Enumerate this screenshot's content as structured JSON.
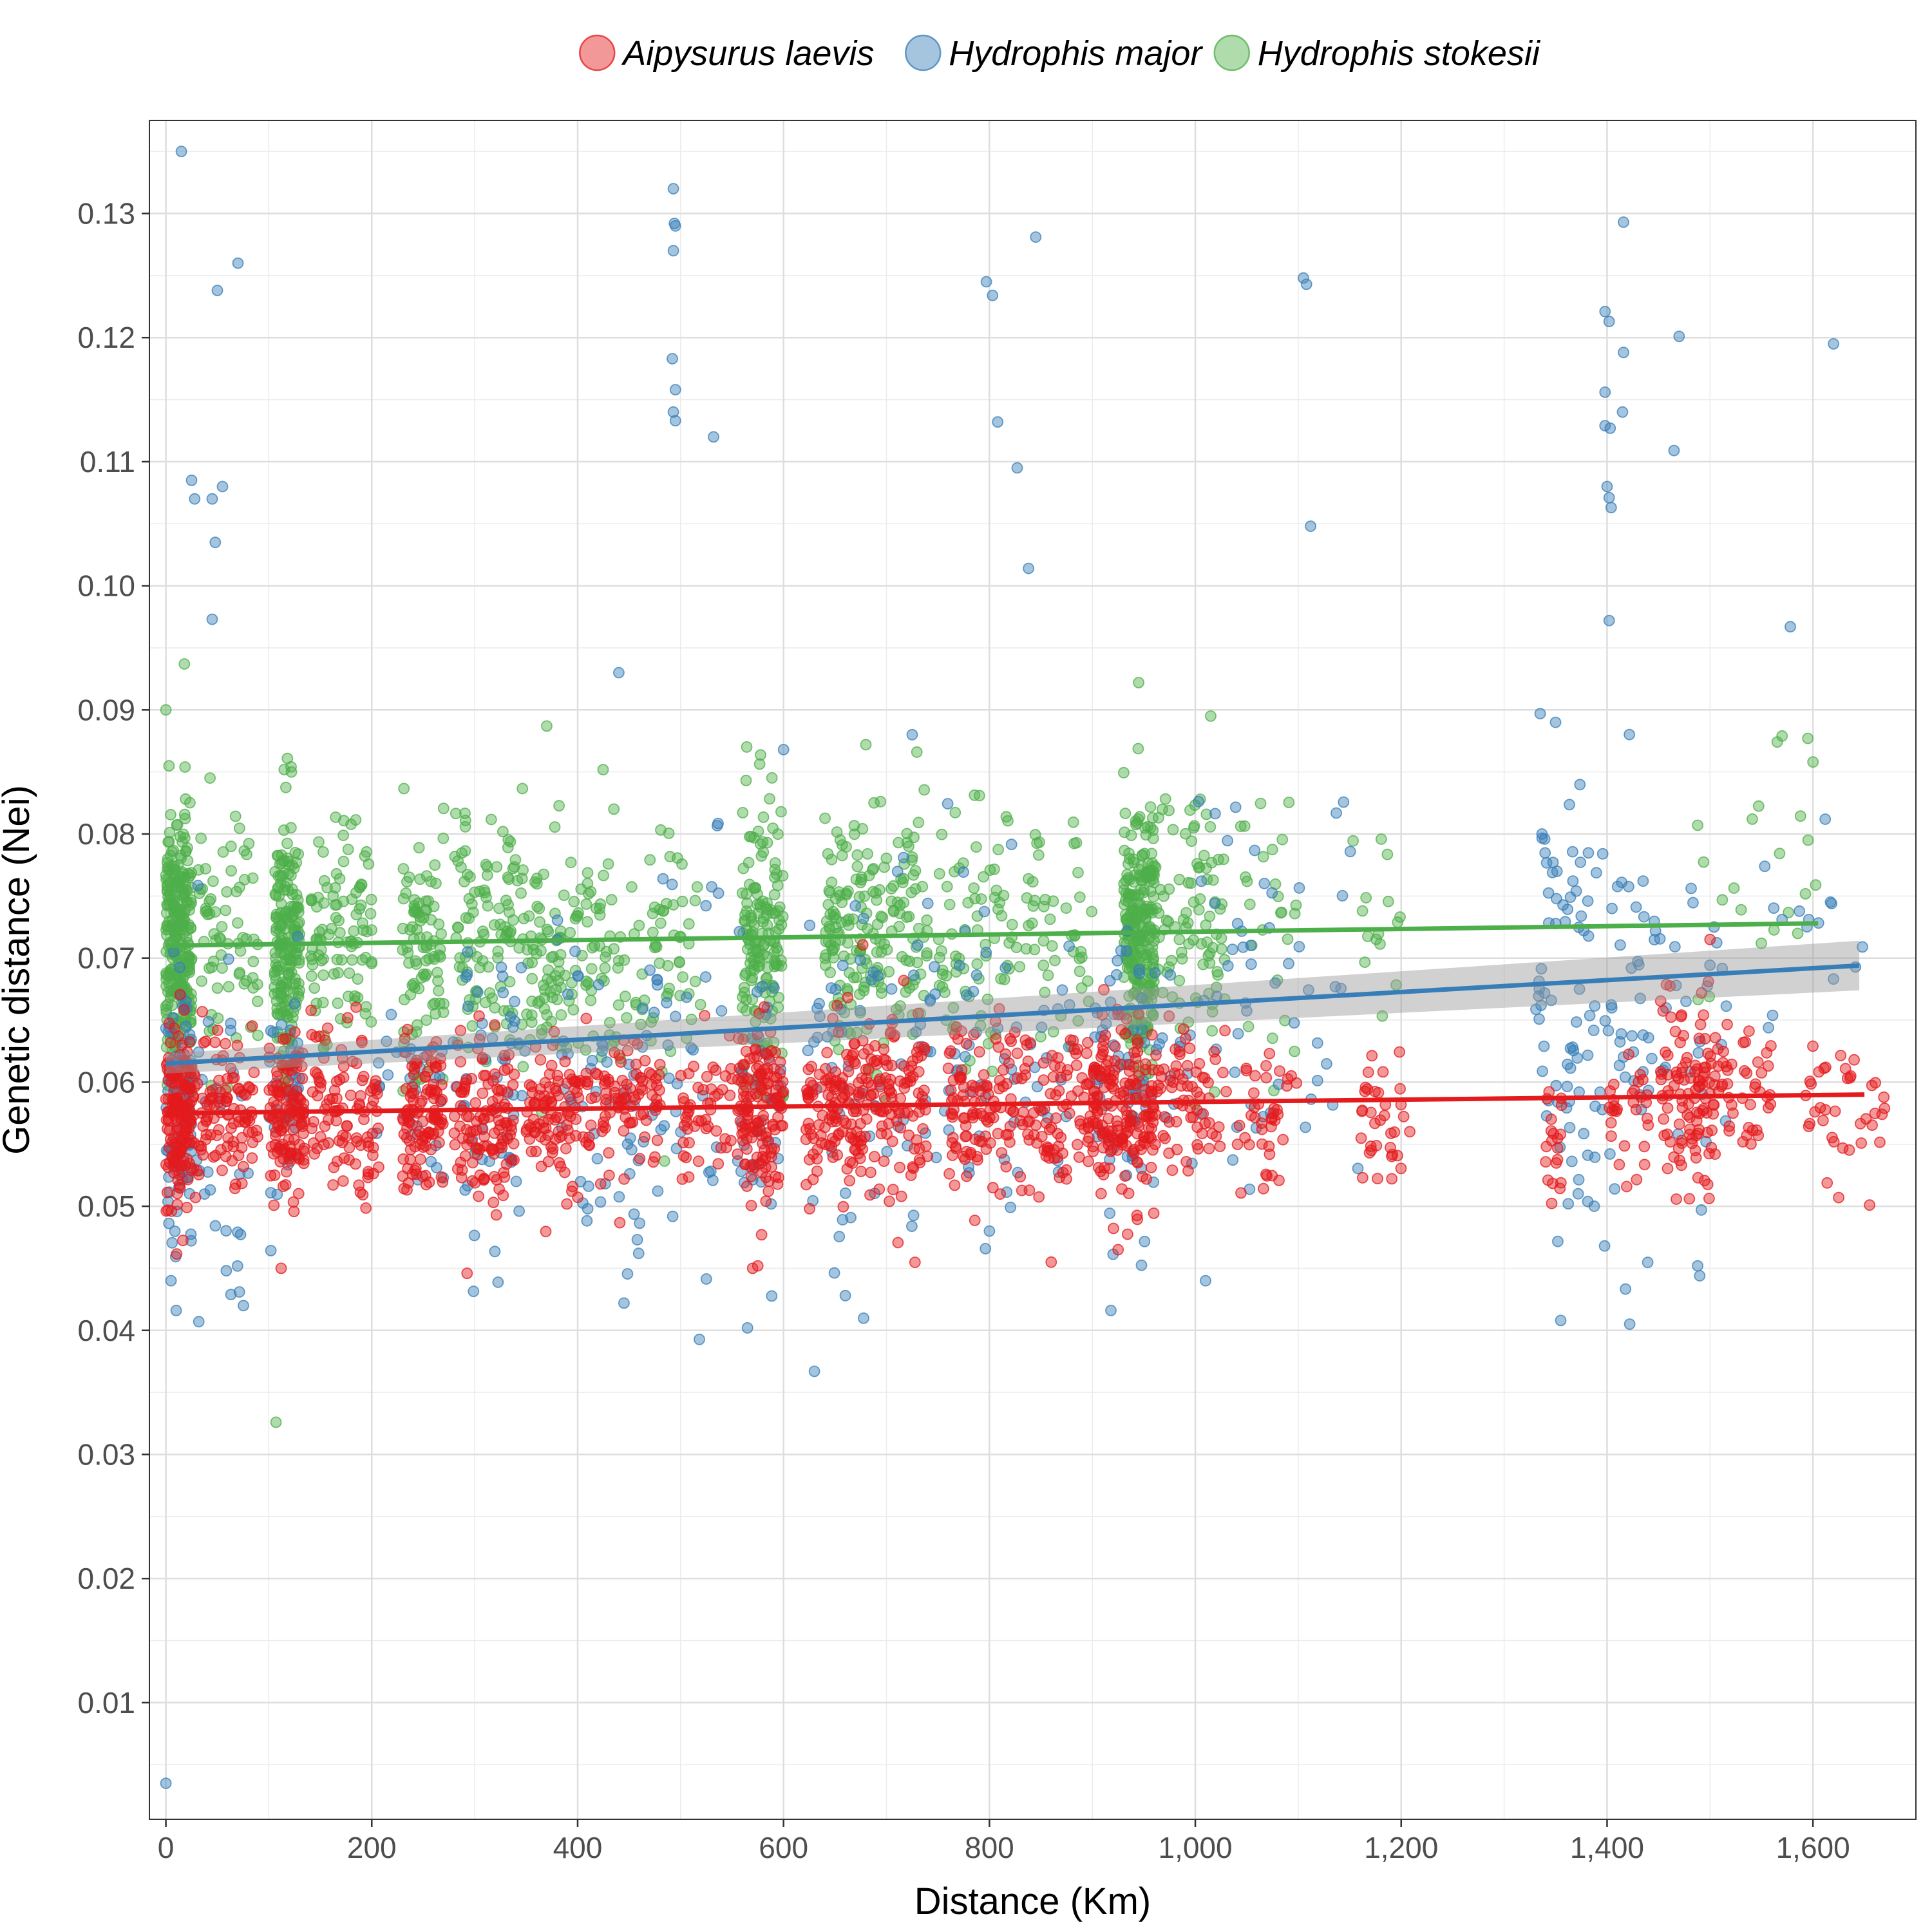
{
  "chart_data": {
    "type": "scatter",
    "xlabel": "Distance (Km)",
    "ylabel": "Genetic distance (Nei)",
    "xlim": [
      -16,
      1700
    ],
    "ylim": [
      0.0006,
      0.1375
    ],
    "x_ticks": [
      0,
      200,
      400,
      600,
      800,
      1000,
      1200,
      1400,
      1600
    ],
    "x_tick_labels": [
      "0",
      "200",
      "400",
      "600",
      "800",
      "1,000",
      "1,200",
      "1,400",
      "1,600"
    ],
    "y_ticks": [
      0.01,
      0.02,
      0.03,
      0.04,
      0.05,
      0.06,
      0.07,
      0.08,
      0.09,
      0.1,
      0.11,
      0.12,
      0.13
    ],
    "y_tick_labels": [
      "0.01",
      "0.02",
      "0.03",
      "0.04",
      "0.05",
      "0.06",
      "0.07",
      "0.08",
      "0.09",
      "0.10",
      "0.11",
      "0.12",
      "0.13"
    ],
    "grid": true,
    "legend_position": "top",
    "series": [
      {
        "name": "Aipysurus laevis",
        "color": "#e41a1c",
        "clusters": [
          {
            "x": [
              0,
              25
            ],
            "y_mean": 0.0575,
            "y_sd": 0.0035,
            "n": 160
          },
          {
            "x": [
              25,
              90
            ],
            "y_mean": 0.0575,
            "y_sd": 0.003,
            "n": 110
          },
          {
            "x": [
              100,
              135
            ],
            "y_mean": 0.0575,
            "y_sd": 0.0032,
            "n": 120
          },
          {
            "x": [
              140,
              210
            ],
            "y_mean": 0.0575,
            "y_sd": 0.003,
            "n": 100
          },
          {
            "x": [
              230,
              270
            ],
            "y_mean": 0.057,
            "y_sd": 0.003,
            "n": 110
          },
          {
            "x": [
              280,
              340
            ],
            "y_mean": 0.057,
            "y_sd": 0.0032,
            "n": 120
          },
          {
            "x": [
              350,
              420
            ],
            "y_mean": 0.0575,
            "y_sd": 0.003,
            "n": 110
          },
          {
            "x": [
              420,
              480
            ],
            "y_mean": 0.058,
            "y_sd": 0.003,
            "n": 80
          },
          {
            "x": [
              500,
              550
            ],
            "y_mean": 0.0575,
            "y_sd": 0.003,
            "n": 50
          },
          {
            "x": [
              555,
              600
            ],
            "y_mean": 0.058,
            "y_sd": 0.0035,
            "n": 140
          },
          {
            "x": [
              620,
              680
            ],
            "y_mean": 0.058,
            "y_sd": 0.0035,
            "n": 130
          },
          {
            "x": [
              680,
              740
            ],
            "y_mean": 0.058,
            "y_sd": 0.0035,
            "n": 110
          },
          {
            "x": [
              760,
              820
            ],
            "y_mean": 0.058,
            "y_sd": 0.0033,
            "n": 100
          },
          {
            "x": [
              820,
              900
            ],
            "y_mean": 0.058,
            "y_sd": 0.0032,
            "n": 100
          },
          {
            "x": [
              900,
              960
            ],
            "y_mean": 0.058,
            "y_sd": 0.0035,
            "n": 180
          },
          {
            "x": [
              960,
              1030
            ],
            "y_mean": 0.0585,
            "y_sd": 0.003,
            "n": 70
          },
          {
            "x": [
              1040,
              1100
            ],
            "y_mean": 0.057,
            "y_sd": 0.003,
            "n": 40
          },
          {
            "x": [
              1160,
              1210
            ],
            "y_mean": 0.057,
            "y_sd": 0.003,
            "n": 35
          },
          {
            "x": [
              1340,
              1360
            ],
            "y_mean": 0.055,
            "y_sd": 0.003,
            "n": 20
          },
          {
            "x": [
              1400,
              1440
            ],
            "y_mean": 0.058,
            "y_sd": 0.003,
            "n": 30
          },
          {
            "x": [
              1450,
              1510
            ],
            "y_mean": 0.059,
            "y_sd": 0.0035,
            "n": 110
          },
          {
            "x": [
              1510,
              1560
            ],
            "y_mean": 0.059,
            "y_sd": 0.0028,
            "n": 40
          },
          {
            "x": [
              1590,
              1670
            ],
            "y_mean": 0.0585,
            "y_sd": 0.003,
            "n": 35
          }
        ],
        "extra_points": [
          [
            112,
            0.045
          ],
          [
            570,
            0.045
          ],
          [
            575,
            0.0452
          ],
          [
            860,
            0.0455
          ],
          [
            1480,
            0.0506
          ],
          [
            1625,
            0.0507
          ],
          [
            1655,
            0.0501
          ],
          [
            925,
            0.0465
          ],
          [
            1500,
            0.0715
          ],
          [
            1640,
            0.0618
          ]
        ],
        "trend": {
          "x0": 0,
          "y0": 0.0575,
          "x1": 1650,
          "y1": 0.059
        }
      },
      {
        "name": "Hydrophis major",
        "color": "#377eb8",
        "clusters": [
          {
            "x": [
              0,
              25
            ],
            "y_mean": 0.0585,
            "y_sd": 0.005,
            "n": 90
          },
          {
            "x": [
              30,
              80
            ],
            "y_mean": 0.0575,
            "y_sd": 0.006,
            "n": 30
          },
          {
            "x": [
              100,
              130
            ],
            "y_mean": 0.058,
            "y_sd": 0.005,
            "n": 40
          },
          {
            "x": [
              200,
              280
            ],
            "y_mean": 0.058,
            "y_sd": 0.006,
            "n": 30
          },
          {
            "x": [
              280,
              350
            ],
            "y_mean": 0.06,
            "y_sd": 0.006,
            "n": 50
          },
          {
            "x": [
              380,
              480
            ],
            "y_mean": 0.06,
            "y_sd": 0.007,
            "n": 60
          },
          {
            "x": [
              480,
              540
            ],
            "y_mean": 0.061,
            "y_sd": 0.008,
            "n": 30
          },
          {
            "x": [
              555,
              600
            ],
            "y_mean": 0.058,
            "y_sd": 0.006,
            "n": 40
          },
          {
            "x": [
              620,
              700
            ],
            "y_mean": 0.06,
            "y_sd": 0.007,
            "n": 40
          },
          {
            "x": [
              700,
              800
            ],
            "y_mean": 0.063,
            "y_sd": 0.008,
            "n": 50
          },
          {
            "x": [
              800,
              880
            ],
            "y_mean": 0.061,
            "y_sd": 0.007,
            "n": 30
          },
          {
            "x": [
              900,
              960
            ],
            "y_mean": 0.06,
            "y_sd": 0.006,
            "n": 60
          },
          {
            "x": [
              960,
              1060
            ],
            "y_mean": 0.065,
            "y_sd": 0.008,
            "n": 40
          },
          {
            "x": [
              1060,
              1160
            ],
            "y_mean": 0.068,
            "y_sd": 0.008,
            "n": 25
          },
          {
            "x": [
              1330,
              1380
            ],
            "y_mean": 0.068,
            "y_sd": 0.009,
            "n": 60
          },
          {
            "x": [
              1380,
              1440
            ],
            "y_mean": 0.065,
            "y_sd": 0.009,
            "n": 50
          },
          {
            "x": [
              1440,
              1520
            ],
            "y_mean": 0.064,
            "y_sd": 0.007,
            "n": 30
          },
          {
            "x": [
              1550,
              1650
            ],
            "y_mean": 0.07,
            "y_sd": 0.007,
            "n": 15
          }
        ],
        "extra_points": [
          [
            0,
            0.0035
          ],
          [
            15,
            0.135
          ],
          [
            70,
            0.126
          ],
          [
            50,
            0.1238
          ],
          [
            25,
            0.1085
          ],
          [
            28,
            0.107
          ],
          [
            45,
            0.107
          ],
          [
            55,
            0.108
          ],
          [
            48,
            0.1035
          ],
          [
            45,
            0.0973
          ],
          [
            493,
            0.132
          ],
          [
            494,
            0.1292
          ],
          [
            495,
            0.129
          ],
          [
            493,
            0.127
          ],
          [
            492,
            0.1183
          ],
          [
            495,
            0.1158
          ],
          [
            493,
            0.114
          ],
          [
            495,
            0.1133
          ],
          [
            532,
            0.112
          ],
          [
            440,
            0.093
          ],
          [
            845,
            0.1281
          ],
          [
            797,
            0.1245
          ],
          [
            803,
            0.1234
          ],
          [
            808,
            0.1132
          ],
          [
            827,
            0.1095
          ],
          [
            838,
            0.1014
          ],
          [
            1105,
            0.1248
          ],
          [
            1108,
            0.1243
          ],
          [
            1112,
            0.1048
          ],
          [
            1416,
            0.1293
          ],
          [
            1398,
            0.1221
          ],
          [
            1402,
            0.1213
          ],
          [
            1416,
            0.1188
          ],
          [
            1470,
            0.1201
          ],
          [
            1620,
            0.1195
          ],
          [
            1398,
            0.1156
          ],
          [
            1415,
            0.114
          ],
          [
            1398,
            0.1129
          ],
          [
            1403,
            0.1127
          ],
          [
            1465,
            0.1109
          ],
          [
            1400,
            0.108
          ],
          [
            1402,
            0.1071
          ],
          [
            1404,
            0.1063
          ],
          [
            1402,
            0.0972
          ],
          [
            1578,
            0.0967
          ],
          [
            1335,
            0.0897
          ],
          [
            1350,
            0.089
          ],
          [
            630,
            0.0367
          ],
          [
            565,
            0.0402
          ],
          [
            1355,
            0.0408
          ],
          [
            1422,
            0.0405
          ],
          [
            32,
            0.0407
          ],
          [
            5,
            0.044
          ],
          [
            10,
            0.0416
          ],
          [
            445,
            0.0422
          ],
          [
            660,
            0.0428
          ],
          [
            918,
            0.0416
          ],
          [
            1010,
            0.044
          ],
          [
            1490,
            0.0444
          ],
          [
            1488,
            0.0452
          ],
          [
            800,
            0.048
          ],
          [
            725,
            0.088
          ],
          [
            600,
            0.0868
          ]
        ],
        "trend": {
          "x0": 0,
          "y0": 0.0615,
          "x1": 1645,
          "y1": 0.0694
        },
        "ci": {
          "half_width_start": 0.0008,
          "half_width_end": 0.002
        }
      },
      {
        "name": "Hydrophis stokesii",
        "color": "#4daf4a",
        "clusters": [
          {
            "x": [
              0,
              25
            ],
            "y_mean": 0.0715,
            "y_sd": 0.0055,
            "n": 280
          },
          {
            "x": [
              25,
              90
            ],
            "y_mean": 0.071,
            "y_sd": 0.005,
            "n": 70
          },
          {
            "x": [
              105,
              130
            ],
            "y_mean": 0.071,
            "y_sd": 0.0055,
            "n": 200
          },
          {
            "x": [
              140,
              200
            ],
            "y_mean": 0.072,
            "y_sd": 0.005,
            "n": 100
          },
          {
            "x": [
              230,
              270
            ],
            "y_mean": 0.071,
            "y_sd": 0.005,
            "n": 90
          },
          {
            "x": [
              280,
              360
            ],
            "y_mean": 0.071,
            "y_sd": 0.005,
            "n": 120
          },
          {
            "x": [
              360,
              440
            ],
            "y_mean": 0.071,
            "y_sd": 0.005,
            "n": 110
          },
          {
            "x": [
              440,
              520
            ],
            "y_mean": 0.07,
            "y_sd": 0.005,
            "n": 60
          },
          {
            "x": [
              560,
              600
            ],
            "y_mean": 0.0715,
            "y_sd": 0.0055,
            "n": 160
          },
          {
            "x": [
              640,
              690
            ],
            "y_mean": 0.072,
            "y_sd": 0.005,
            "n": 110
          },
          {
            "x": [
              690,
              740
            ],
            "y_mean": 0.072,
            "y_sd": 0.005,
            "n": 80
          },
          {
            "x": [
              750,
              820
            ],
            "y_mean": 0.072,
            "y_sd": 0.005,
            "n": 70
          },
          {
            "x": [
              820,
              900
            ],
            "y_mean": 0.072,
            "y_sd": 0.004,
            "n": 50
          },
          {
            "x": [
              930,
              960
            ],
            "y_mean": 0.0725,
            "y_sd": 0.0055,
            "n": 260
          },
          {
            "x": [
              960,
              1030
            ],
            "y_mean": 0.073,
            "y_sd": 0.005,
            "n": 90
          },
          {
            "x": [
              1040,
              1100
            ],
            "y_mean": 0.072,
            "y_sd": 0.006,
            "n": 25
          },
          {
            "x": [
              1150,
              1200
            ],
            "y_mean": 0.073,
            "y_sd": 0.004,
            "n": 15
          },
          {
            "x": [
              1480,
              1610
            ],
            "y_mean": 0.078,
            "y_sd": 0.0055,
            "n": 18
          }
        ],
        "extra_points": [
          [
            18,
            0.0937
          ],
          [
            0,
            0.09
          ],
          [
            107,
            0.0326
          ],
          [
            370,
            0.0887
          ],
          [
            945,
            0.0922
          ],
          [
            1015,
            0.0895
          ],
          [
            680,
            0.0872
          ],
          [
            1600,
            0.0858
          ],
          [
            1595,
            0.0877
          ],
          [
            1570,
            0.0879
          ],
          [
            1488,
            0.0807
          ]
        ],
        "trend": {
          "x0": 0,
          "y0": 0.071,
          "x1": 1605,
          "y1": 0.0728
        }
      }
    ]
  }
}
